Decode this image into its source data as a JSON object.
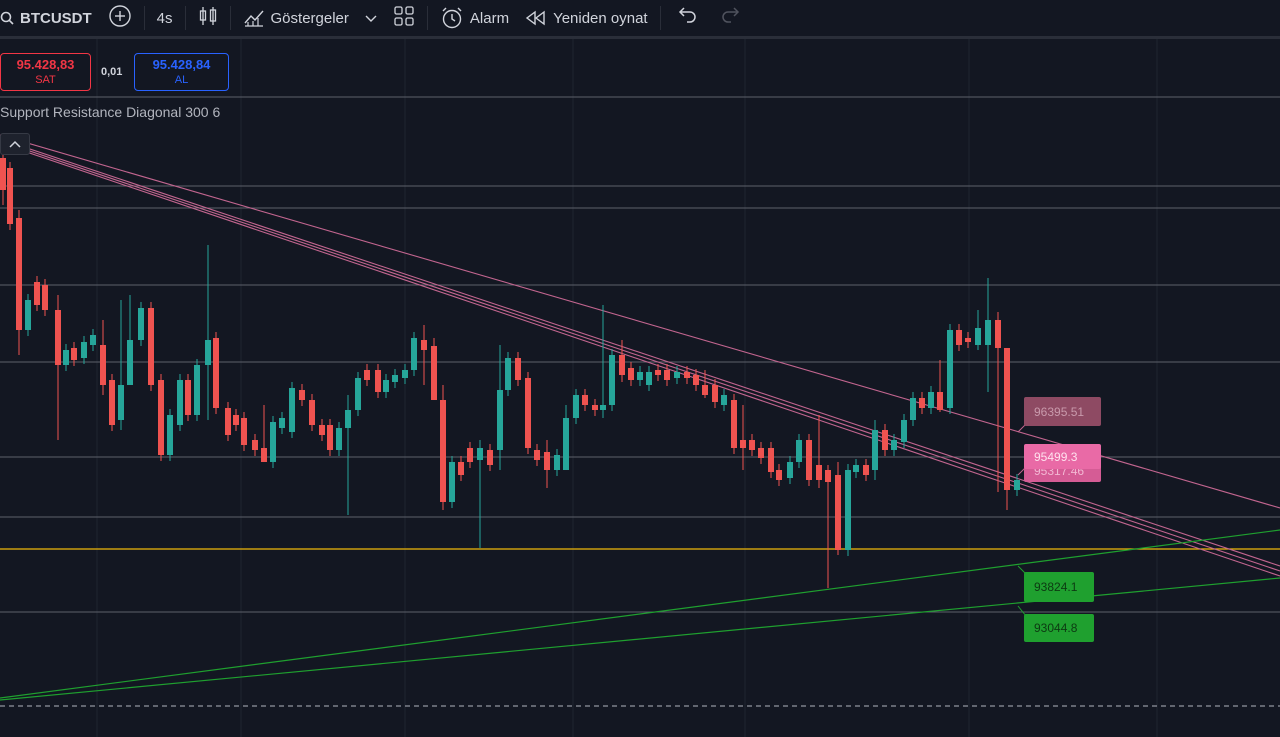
{
  "toolbar": {
    "symbol": "BTCUSDT",
    "interval": "4s",
    "indicators_label": "Göstergeler",
    "alarm_label": "Alarm",
    "replay_label": "Yeniden oynat"
  },
  "trade": {
    "sell_price": "95.428,83",
    "sell_label": "SAT",
    "spread": "0,01",
    "buy_price": "95.428,84",
    "buy_label": "AL"
  },
  "indicator": {
    "name": "Support Resistance Diagonal 300 6"
  },
  "levels": {
    "resistance_1": "96395.51",
    "resistance_2": "95499.3",
    "resistance_3": "95317.46",
    "support_1": "93824.1",
    "support_2": "93044.8"
  },
  "colors": {
    "background": "#131722",
    "up": "#26a69a",
    "down": "#ef5350",
    "resistance": "#c2658f",
    "support": "#1fa02f",
    "level_line": "#f0b90b"
  },
  "icons": [
    "search-icon",
    "add-symbol-icon",
    "candles-icon",
    "indicators-icon",
    "chevron-down-icon",
    "layouts-icon",
    "alarm-icon",
    "replay-icon",
    "undo-icon",
    "redo-icon",
    "collapse-icon"
  ]
}
